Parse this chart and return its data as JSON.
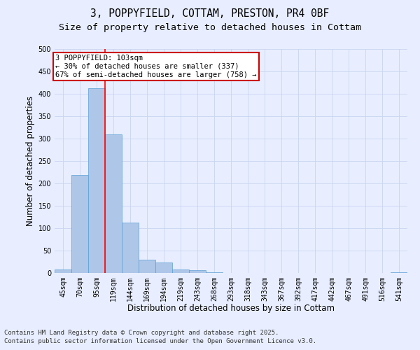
{
  "title1": "3, POPPYFIELD, COTTAM, PRESTON, PR4 0BF",
  "title2": "Size of property relative to detached houses in Cottam",
  "xlabel": "Distribution of detached houses by size in Cottam",
  "ylabel": "Number of detached properties",
  "categories": [
    "45sqm",
    "70sqm",
    "95sqm",
    "119sqm",
    "144sqm",
    "169sqm",
    "194sqm",
    "219sqm",
    "243sqm",
    "268sqm",
    "293sqm",
    "318sqm",
    "343sqm",
    "367sqm",
    "392sqm",
    "417sqm",
    "442sqm",
    "467sqm",
    "491sqm",
    "516sqm",
    "541sqm"
  ],
  "values": [
    8,
    219,
    413,
    310,
    113,
    30,
    23,
    8,
    6,
    2,
    0,
    0,
    0,
    0,
    0,
    0,
    0,
    0,
    0,
    0,
    2
  ],
  "bar_color": "#aec6e8",
  "bar_edge_color": "#5a9fd4",
  "ylim": [
    0,
    500
  ],
  "yticks": [
    0,
    50,
    100,
    150,
    200,
    250,
    300,
    350,
    400,
    450,
    500
  ],
  "redline_x": 2.5,
  "annotation_line1": "3 POPPYFIELD: 103sqm",
  "annotation_line2": "← 30% of detached houses are smaller (337)",
  "annotation_line3": "67% of semi-detached houses are larger (758) →",
  "annotation_box_color": "#ffffff",
  "annotation_box_edge": "#cc0000",
  "footer1": "Contains HM Land Registry data © Crown copyright and database right 2025.",
  "footer2": "Contains public sector information licensed under the Open Government Licence v3.0.",
  "bg_color": "#e8eeff",
  "grid_color": "#c8d4f0",
  "title_fontsize": 10.5,
  "subtitle_fontsize": 9.5,
  "tick_fontsize": 7,
  "label_fontsize": 8.5,
  "footer_fontsize": 6.5,
  "annotation_fontsize": 7.5
}
